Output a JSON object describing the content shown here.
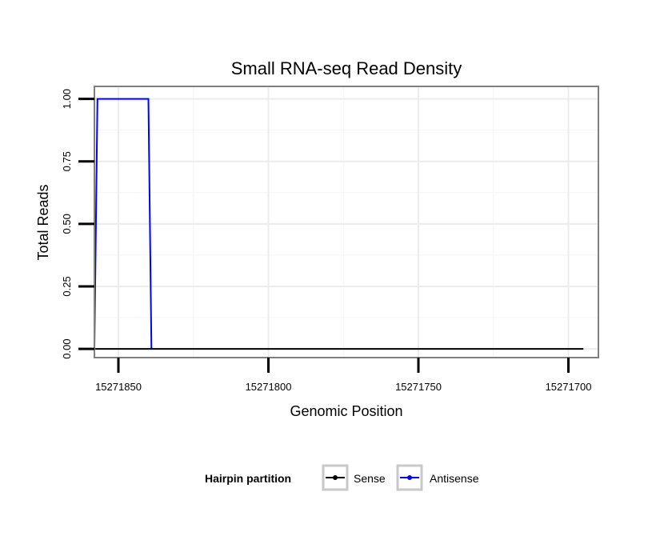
{
  "chart_data": {
    "type": "line",
    "title": "Small RNA-seq Read Density",
    "xlabel": "Genomic Position",
    "ylabel": "Total Reads",
    "x_reversed": true,
    "xlim": [
      15271858,
      15271690
    ],
    "ylim": [
      -0.035,
      1.05
    ],
    "x_ticks": [
      15271850,
      15271800,
      15271750,
      15271700
    ],
    "x_tick_labels": [
      "15271850",
      "15271800",
      "15271750",
      "15271700"
    ],
    "y_ticks": [
      0,
      0.25,
      0.5,
      0.75,
      1.0
    ],
    "y_tick_labels": [
      "0.00",
      "0.25",
      "0.50",
      "0.75",
      "1.00"
    ],
    "grid": true,
    "legend_position": "bottom",
    "legend_title": "Hairpin partition",
    "series": [
      {
        "name": "Sense",
        "color": "#000000",
        "x": [
          15271858,
          15271695
        ],
        "y": [
          0,
          0
        ]
      },
      {
        "name": "Antisense",
        "color": "#0000ff",
        "x": [
          15271858,
          15271857,
          15271840,
          15271839
        ],
        "y": [
          0,
          1,
          1,
          0
        ]
      }
    ]
  }
}
